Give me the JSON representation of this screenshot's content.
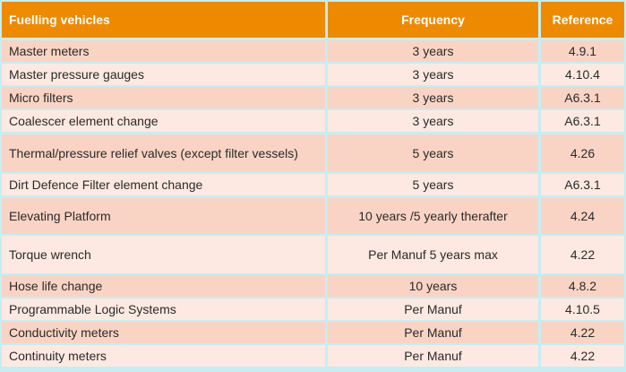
{
  "table": {
    "headers": [
      "Fuelling vehicles",
      "Frequency",
      "Reference"
    ],
    "rows": [
      [
        "Master meters",
        "3 years",
        "4.9.1"
      ],
      [
        "Master pressure gauges",
        "3 years",
        "4.10.4"
      ],
      [
        "Micro filters",
        "3 years",
        "A6.3.1"
      ],
      [
        "Coalescer element change",
        "3 years",
        "A6.3.1"
      ],
      [
        "Thermal/pressure relief valves (except filter vessels)",
        "5 years",
        "4.26"
      ],
      [
        "Dirt Defence Filter element change",
        "5 years",
        "A6.3.1"
      ],
      [
        "Elevating Platform",
        "10 years /5 yearly therafter",
        "4.24"
      ],
      [
        "Torque wrench",
        "Per Manuf 5 years max",
        "4.22"
      ],
      [
        "Hose life change",
        "10 years",
        "4.8.2"
      ],
      [
        "Programmable Logic Systems",
        "Per Manuf",
        "4.10.5"
      ],
      [
        "Conductivity meters",
        "Per Manuf",
        "4.22"
      ],
      [
        "Continuity meters",
        "Per Manuf",
        "4.22"
      ]
    ]
  },
  "colors": {
    "header_bg": "#ee8a00",
    "row_dark": "#f9d4c4",
    "row_light": "#fde9e1",
    "grid": "#c5eef3"
  }
}
